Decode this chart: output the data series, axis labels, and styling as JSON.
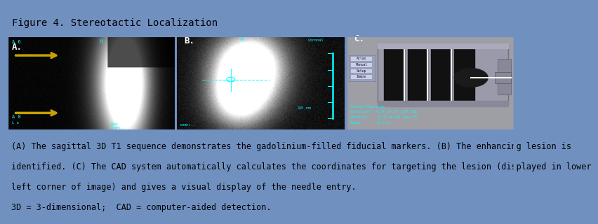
{
  "title": "Figure 4. Stereotactic Localization",
  "title_bg": "#b0bedd",
  "outer_border_color": "#7090c0",
  "caption_bg": "#ffffff",
  "caption_lines": [
    "(A) The sagittal 3D T1 sequence demonstrates the gadolinium-filled fiducial markers. (B) The enhancing lesion is",
    "identified. (C) The CAD system automatically calculates the coordinates for targeting the lesion (displayed in lower",
    "left corner of image) and gives a visual display of the needle entry.",
    "3D = 3-dimensional;  CAD = computer-aided detection."
  ],
  "caption_fontsize": 8.5,
  "title_fontsize": 10,
  "fig_width": 7.35,
  "fig_height": 3.05
}
